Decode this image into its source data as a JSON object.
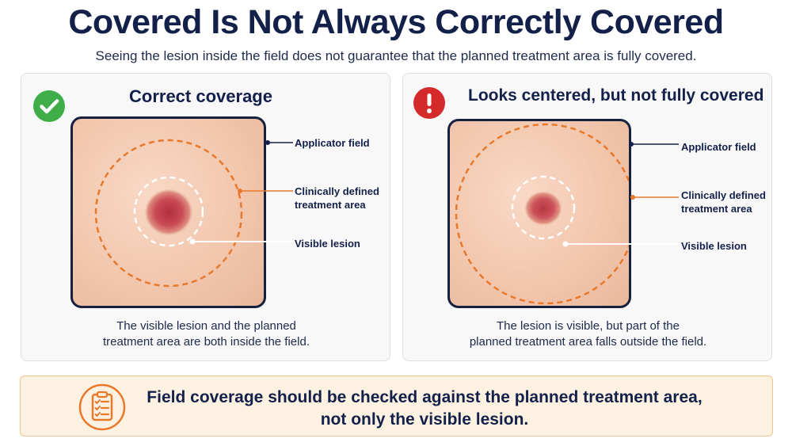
{
  "title": "Covered Is Not Always Correctly Covered",
  "subtitle": "Seeing the lesion inside the field does not guarantee that the planned treatment area is fully covered.",
  "colors": {
    "navy": "#13214a",
    "orange": "#e8782a",
    "green": "#3fae49",
    "red": "#d42a2a",
    "note_bg": "#fdf1e2"
  },
  "panels": [
    {
      "status_icon": "check-icon",
      "title": "Correct coverage",
      "labels": {
        "applicator": "Applicator field",
        "treatment_line1": "Clinically defined",
        "treatment_line2": "treatment area",
        "lesion": "Visible lesion"
      },
      "caption_line1": "The visible lesion and the planned",
      "caption_line2": "treatment area are both inside the field."
    },
    {
      "status_icon": "exclamation-icon",
      "title": "Looks centered, but not fully covered",
      "labels": {
        "applicator": "Applicator field",
        "treatment_line1": "Clinically defined",
        "treatment_line2": "treatment area",
        "lesion": "Visible lesion"
      },
      "caption_line1": "The lesion is visible, but part of the",
      "caption_line2": "planned treatment area falls outside the field."
    }
  ],
  "note": {
    "icon": "clipboard-checklist-icon",
    "line1": "Field coverage should be checked against the planned treatment area,",
    "line2": "not only the visible lesion."
  }
}
